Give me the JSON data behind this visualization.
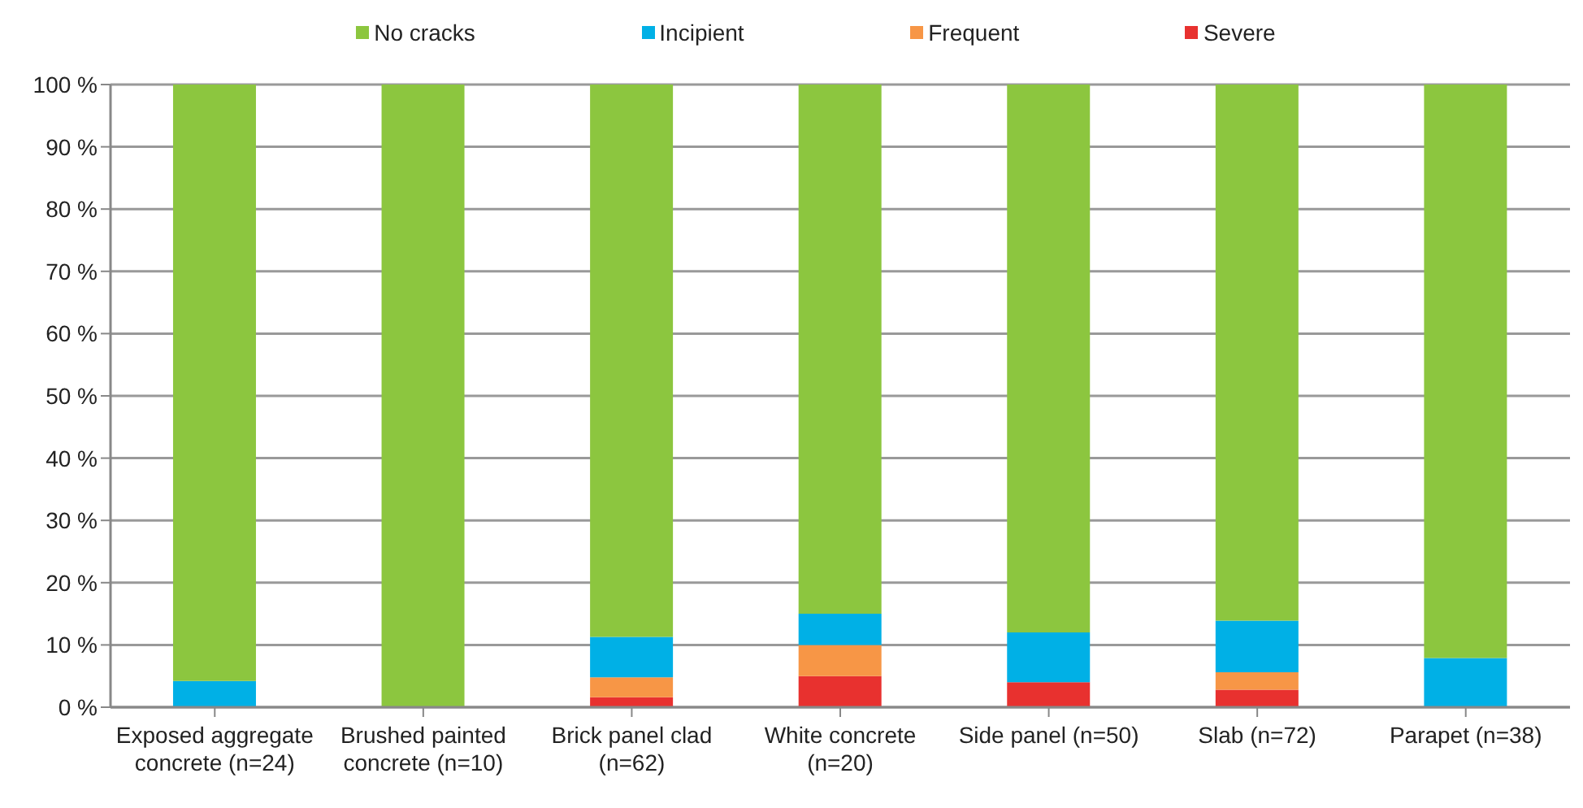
{
  "chart_data": {
    "type": "bar",
    "stacked": true,
    "categories": [
      "Exposed aggregate concrete (n=24)",
      "Brushed painted concrete (n=10)",
      "Brick panel clad (n=62)",
      "White concrete (n=20)",
      "Side panel (n=50)",
      "Slab (n=72)",
      "Parapet (n=38)"
    ],
    "series": [
      {
        "name": "Severe",
        "color": "#e8312f",
        "values": [
          0,
          0,
          1.6,
          5,
          4,
          2.8,
          0
        ]
      },
      {
        "name": "Frequent",
        "color": "#f79646",
        "values": [
          0,
          0,
          3.2,
          5,
          0,
          2.8,
          0
        ]
      },
      {
        "name": "Incipient",
        "color": "#00b0e6",
        "values": [
          4.2,
          0,
          6.5,
          5,
          8,
          8.3,
          7.9
        ]
      },
      {
        "name": "No cracks",
        "color": "#8cc63f",
        "values": [
          95.8,
          100,
          88.7,
          85,
          88,
          86.1,
          92.1
        ]
      }
    ],
    "ylim": [
      0,
      100
    ],
    "yticks": [
      {
        "value": 0,
        "label": "0 %"
      },
      {
        "value": 10,
        "label": "10 %"
      },
      {
        "value": 20,
        "label": "20 %"
      },
      {
        "value": 30,
        "label": "30 %"
      },
      {
        "value": 40,
        "label": "40 %"
      },
      {
        "value": 50,
        "label": "50 %"
      },
      {
        "value": 60,
        "label": "60 %"
      },
      {
        "value": 70,
        "label": "70 %"
      },
      {
        "value": 80,
        "label": "80 %"
      },
      {
        "value": 90,
        "label": "90 %"
      },
      {
        "value": 100,
        "label": "100 %"
      }
    ],
    "grid": "y",
    "legend": "top"
  }
}
